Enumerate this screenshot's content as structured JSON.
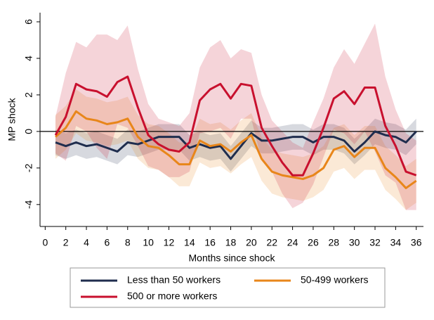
{
  "chart_data": {
    "type": "line",
    "x_label": "Months since shock",
    "y_label": "MP shock",
    "x": [
      1,
      2,
      3,
      4,
      5,
      6,
      7,
      8,
      9,
      10,
      11,
      12,
      13,
      14,
      15,
      16,
      17,
      18,
      19,
      20,
      21,
      22,
      23,
      24,
      25,
      26,
      27,
      28,
      29,
      30,
      31,
      32,
      33,
      34,
      35,
      36
    ],
    "xlim": [
      -0.5,
      36.7
    ],
    "xticks": [
      0,
      2,
      4,
      6,
      8,
      10,
      12,
      14,
      16,
      18,
      20,
      22,
      24,
      26,
      28,
      30,
      32,
      34,
      36
    ],
    "ylim": [
      -5.2,
      6.5
    ],
    "yticks": [
      -4,
      -2,
      0,
      2,
      4,
      6
    ],
    "reference_line": 0,
    "series": [
      {
        "name": "Less than 50 workers",
        "color": "#1f2d4e",
        "values": [
          -0.6,
          -0.8,
          -0.6,
          -0.8,
          -0.7,
          -0.9,
          -1.1,
          -0.6,
          -0.7,
          -0.5,
          -0.3,
          -0.3,
          -0.3,
          -0.9,
          -0.7,
          -0.9,
          -0.8,
          -1.5,
          -0.8,
          -0.1,
          -0.5,
          -0.5,
          -0.4,
          -0.3,
          -0.3,
          -0.6,
          -0.3,
          -0.3,
          -0.5,
          -1.1,
          -0.6,
          0,
          -0.2,
          -0.3,
          -0.6,
          0
        ],
        "upper": [
          0.1,
          -0.1,
          0.1,
          -0.1,
          0.0,
          -0.2,
          -0.4,
          0.1,
          0.0,
          0.2,
          0.4,
          0.4,
          0.4,
          -0.2,
          0.0,
          -0.2,
          -0.1,
          -0.8,
          -0.1,
          0.6,
          0.2,
          0.2,
          0.3,
          0.4,
          0.4,
          0.1,
          0.4,
          0.4,
          0.2,
          -0.4,
          0.1,
          0.7,
          0.5,
          0.4,
          0.1,
          0.7
        ],
        "lower": [
          -1.3,
          -1.5,
          -1.3,
          -1.5,
          -1.4,
          -1.6,
          -1.8,
          -1.3,
          -1.4,
          -1.2,
          -1.0,
          -1.0,
          -1.0,
          -1.6,
          -1.4,
          -1.6,
          -1.5,
          -2.2,
          -1.5,
          -0.8,
          -1.2,
          -1.2,
          -1.1,
          -1.0,
          -1.0,
          -1.3,
          -1.0,
          -1.0,
          -1.2,
          -1.8,
          -1.3,
          -0.7,
          -0.9,
          -1.0,
          -1.3,
          -0.7
        ]
      },
      {
        "name": "50-499 workers",
        "color": "#e8861a",
        "values": [
          -0.3,
          0.2,
          1.1,
          0.7,
          0.6,
          0.4,
          0.5,
          0.7,
          -0.3,
          -0.8,
          -0.9,
          -1.3,
          -1.8,
          -1.8,
          -0.5,
          -0.8,
          -0.7,
          -1.1,
          -0.6,
          -0.2,
          -1.5,
          -2.2,
          -2.4,
          -2.5,
          -2.6,
          -2.4,
          -2.0,
          -1.0,
          -0.8,
          -1.4,
          -0.9,
          -0.9,
          -2.0,
          -2.5,
          -3.1,
          -2.7
        ],
        "upper": [
          0.9,
          1.4,
          2.3,
          1.9,
          1.8,
          1.6,
          1.7,
          1.9,
          0.9,
          0.4,
          0.3,
          -0.1,
          -0.6,
          -0.6,
          0.7,
          0.4,
          0.5,
          0.1,
          0.6,
          1.0,
          -0.3,
          -1.0,
          -1.2,
          -1.3,
          -1.4,
          -1.2,
          -0.8,
          0.2,
          0.4,
          -0.2,
          0.3,
          0.3,
          -0.8,
          -1.3,
          -1.9,
          -1.5
        ],
        "lower": [
          -1.5,
          -1.0,
          -0.1,
          -0.5,
          -0.6,
          -0.8,
          -0.7,
          -0.5,
          -1.5,
          -2.0,
          -2.1,
          -2.5,
          -3.0,
          -3.0,
          -1.7,
          -2.0,
          -1.9,
          -2.3,
          -1.8,
          -1.4,
          -2.7,
          -3.4,
          -3.6,
          -3.7,
          -3.8,
          -3.6,
          -3.2,
          -2.2,
          -2.0,
          -2.6,
          -2.1,
          -2.1,
          -3.2,
          -3.7,
          -4.3,
          -3.9
        ]
      },
      {
        "name": "500 or more workers",
        "color": "#c8102e",
        "values": [
          -0.2,
          0.8,
          2.6,
          2.3,
          2.2,
          1.9,
          2.7,
          3.0,
          1.3,
          -0.2,
          -0.7,
          -1.0,
          -1.1,
          -0.6,
          1.7,
          2.3,
          2.6,
          1.8,
          2.6,
          2.5,
          0.2,
          -0.8,
          -1.7,
          -2.4,
          -2.4,
          -1.2,
          0.2,
          1.8,
          2.2,
          1.5,
          2.4,
          2.4,
          0.3,
          -0.8,
          -2.2,
          -2.4
        ],
        "upper": [
          0.8,
          3.2,
          4.9,
          4.6,
          5.3,
          5.3,
          5.0,
          5.8,
          3.4,
          1.5,
          0.7,
          0.5,
          0.3,
          1.0,
          3.5,
          4.6,
          5.0,
          4.0,
          4.5,
          4.3,
          2.0,
          0.6,
          0.0,
          -0.6,
          -0.9,
          0.5,
          1.8,
          3.5,
          4.5,
          3.7,
          4.8,
          5.9,
          3.0,
          1.2,
          -0.1,
          -0.5
        ],
        "lower": [
          -1.2,
          -1.6,
          0.3,
          0.0,
          -0.9,
          -1.5,
          0.4,
          0.2,
          -0.8,
          -1.9,
          -2.1,
          -2.5,
          -2.5,
          -2.2,
          -0.1,
          0.0,
          0.2,
          -0.4,
          0.7,
          0.7,
          -1.6,
          -2.2,
          -3.4,
          -4.2,
          -3.9,
          -2.9,
          -1.4,
          0.1,
          -0.1,
          -0.7,
          0.0,
          -1.1,
          -2.4,
          -2.8,
          -4.3,
          -4.3
        ]
      }
    ]
  }
}
